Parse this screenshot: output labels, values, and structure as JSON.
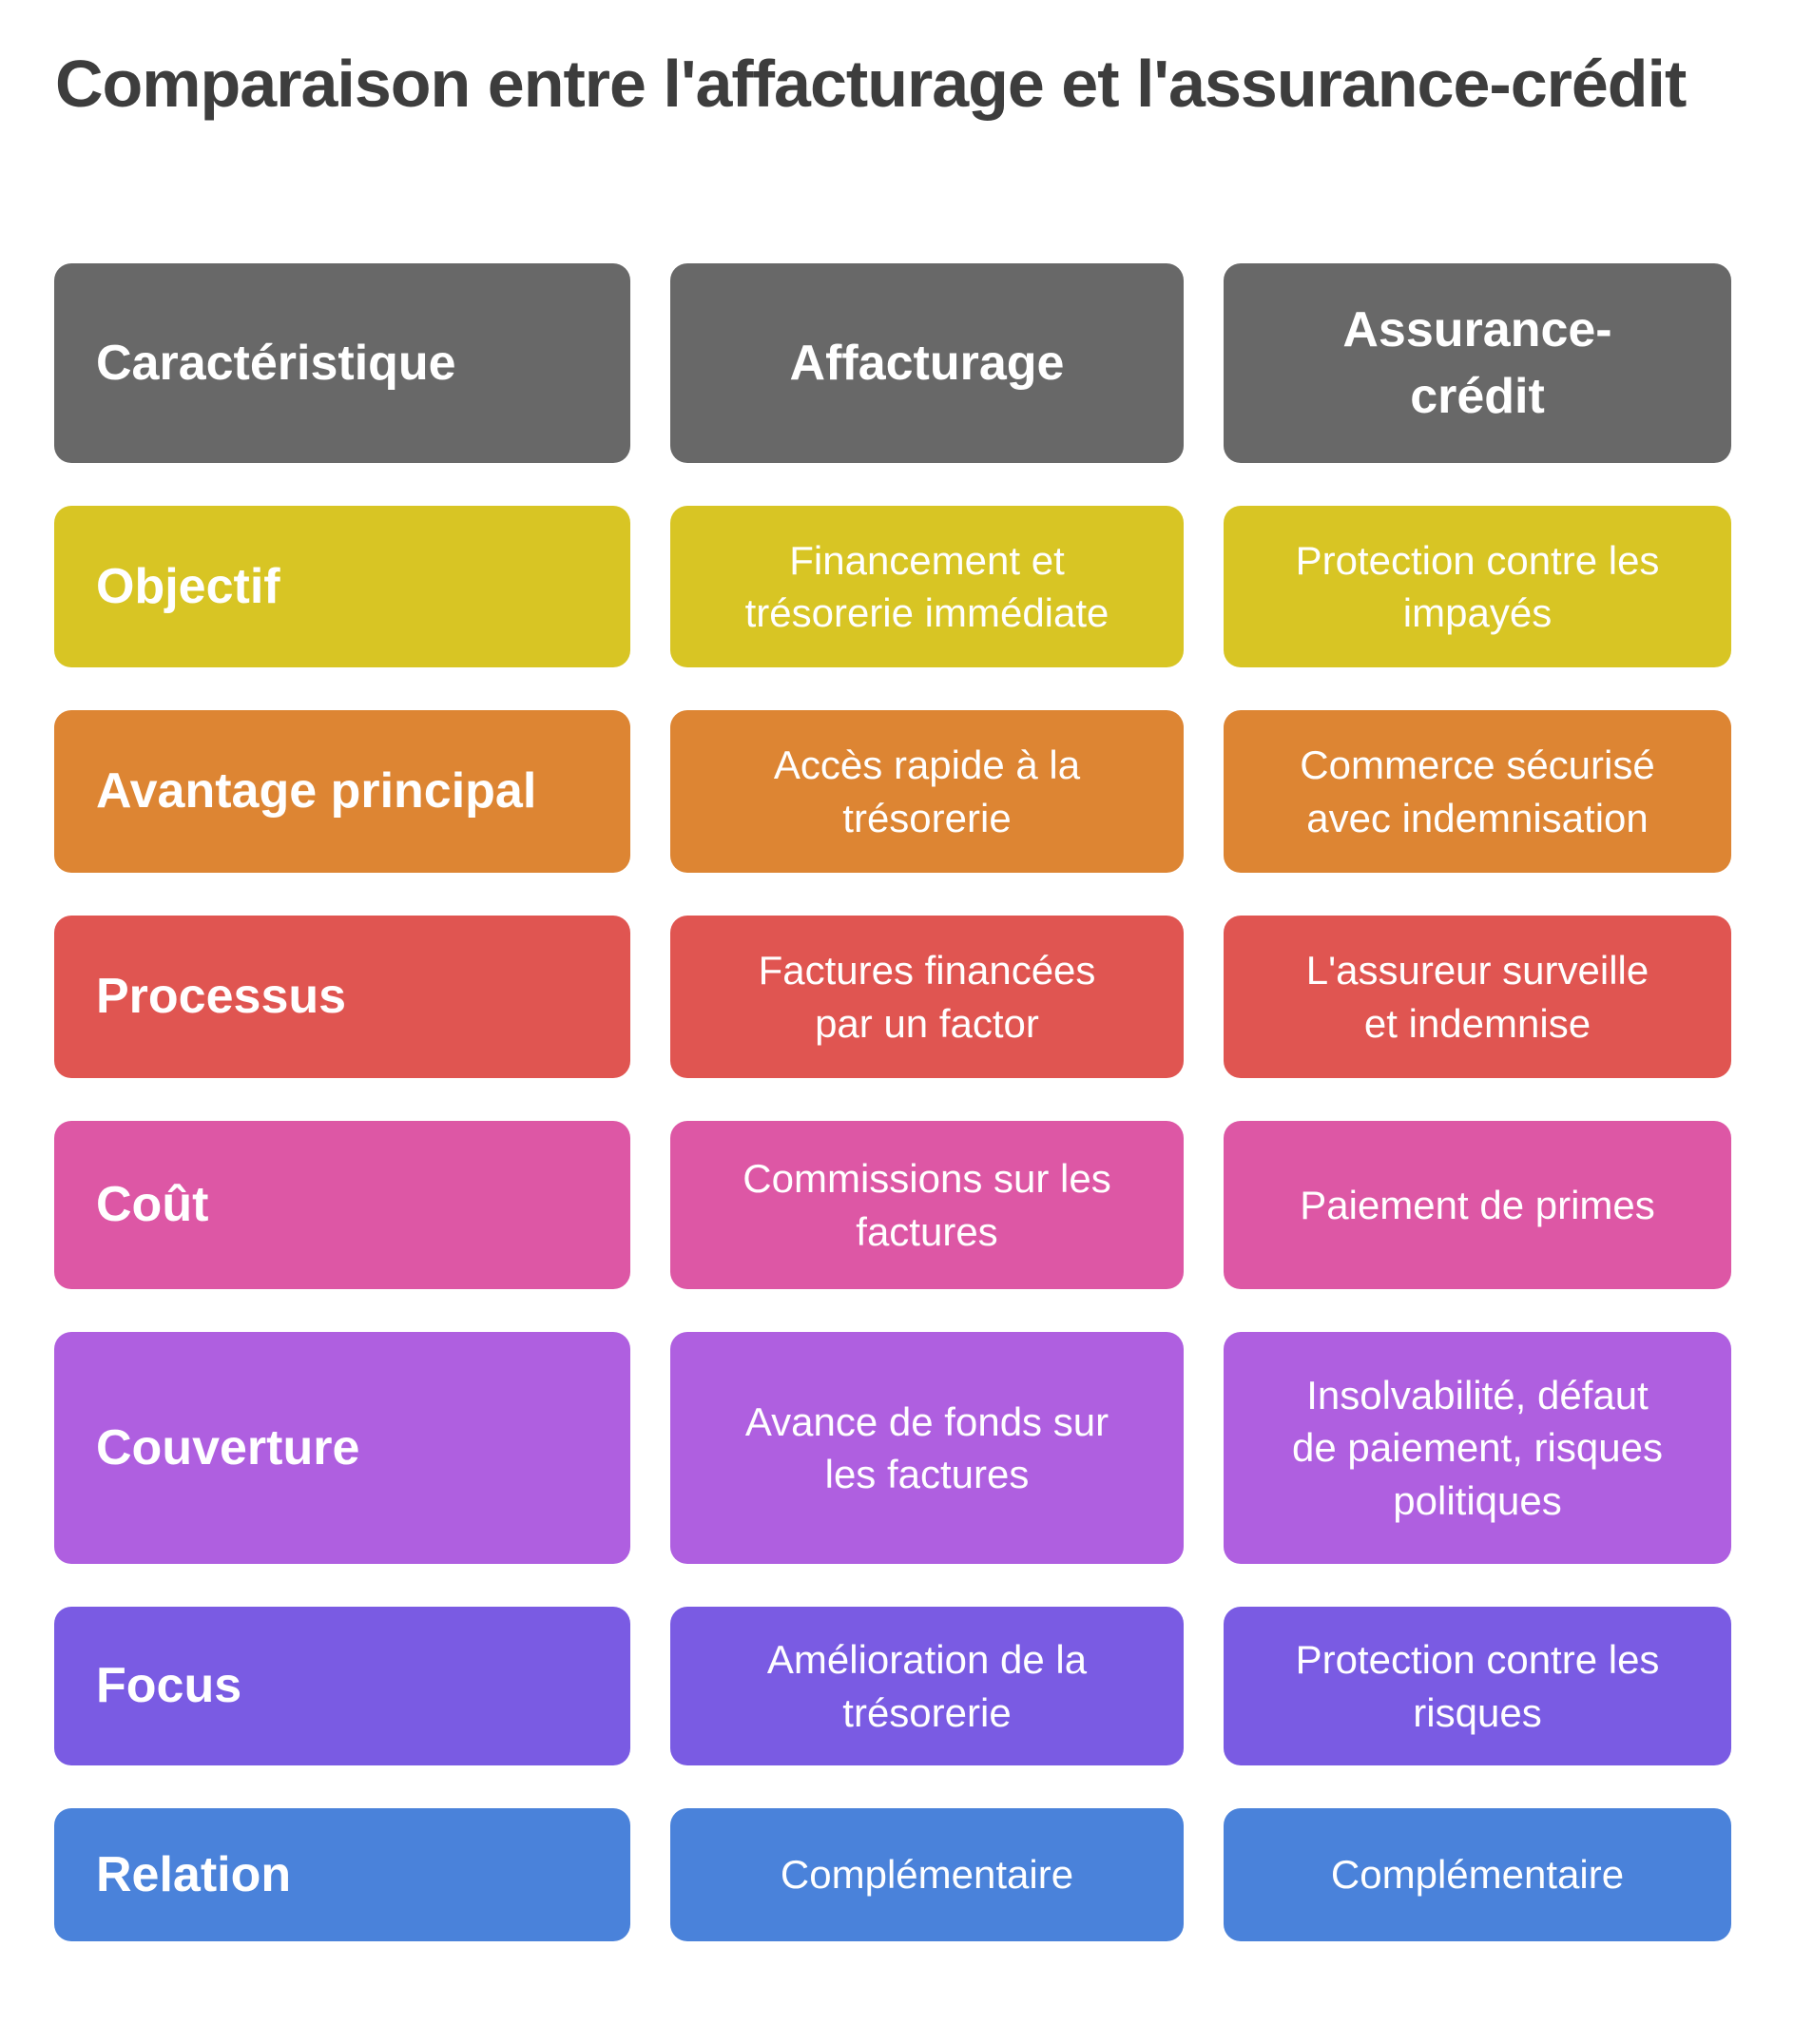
{
  "title": "Comparaison entre l'affacturage et l'assurance-crédit",
  "table": {
    "header_color": "#686868",
    "columns": [
      {
        "label": "Caractéristique"
      },
      {
        "label": "Affacturage"
      },
      {
        "label": "Assurance-\ncrédit"
      }
    ],
    "rows": [
      {
        "feature": "Objectif",
        "color": "#d8c524",
        "affacturage": "Financement et\ntrésorerie immédiate",
        "assurance_credit": "Protection contre les\nimpayés"
      },
      {
        "feature": "Avantage principal",
        "color": "#dd8533",
        "affacturage": "Accès rapide à la\ntrésorerie",
        "assurance_credit": "Commerce sécurisé\navec indemnisation"
      },
      {
        "feature": "Processus",
        "color": "#e05551",
        "affacturage": "Factures financées\npar un factor",
        "assurance_credit": "L'assureur surveille\net indemnise"
      },
      {
        "feature": "Coût",
        "color": "#dd57a5",
        "affacturage": "Commissions sur les\nfactures",
        "assurance_credit": "Paiement de primes"
      },
      {
        "feature": "Couverture",
        "color": "#af5fe0",
        "affacturage": "Avance de fonds sur\nles factures",
        "assurance_credit": "Insolvabilité, défaut\nde paiement, risques\npolitiques"
      },
      {
        "feature": "Focus",
        "color": "#7a5be3",
        "affacturage": "Amélioration de la\ntrésorerie",
        "assurance_credit": "Protection contre les\nrisques"
      },
      {
        "feature": "Relation",
        "color": "#4a82da",
        "affacturage": "Complémentaire",
        "assurance_credit": "Complémentaire"
      }
    ]
  },
  "chart_data": {
    "type": "table",
    "title": "Comparaison entre l'affacturage et l'assurance-crédit",
    "columns": [
      "Caractéristique",
      "Affacturage",
      "Assurance-crédit"
    ],
    "rows": [
      [
        "Objectif",
        "Financement et trésorerie immédiate",
        "Protection contre les impayés"
      ],
      [
        "Avantage principal",
        "Accès rapide à la trésorerie",
        "Commerce sécurisé avec indemnisation"
      ],
      [
        "Processus",
        "Factures financées par un factor",
        "L'assureur surveille et indemnise"
      ],
      [
        "Coût",
        "Commissions sur les factures",
        "Paiement de primes"
      ],
      [
        "Couverture",
        "Avance de fonds sur les factures",
        "Insolvabilité, défaut de paiement, risques politiques"
      ],
      [
        "Focus",
        "Amélioration de la trésorerie",
        "Protection contre les risques"
      ],
      [
        "Relation",
        "Complémentaire",
        "Complémentaire"
      ]
    ],
    "row_colors": [
      "#d8c524",
      "#dd8533",
      "#e05551",
      "#dd57a5",
      "#af5fe0",
      "#7a5be3",
      "#4a82da"
    ],
    "header_color": "#686868"
  }
}
